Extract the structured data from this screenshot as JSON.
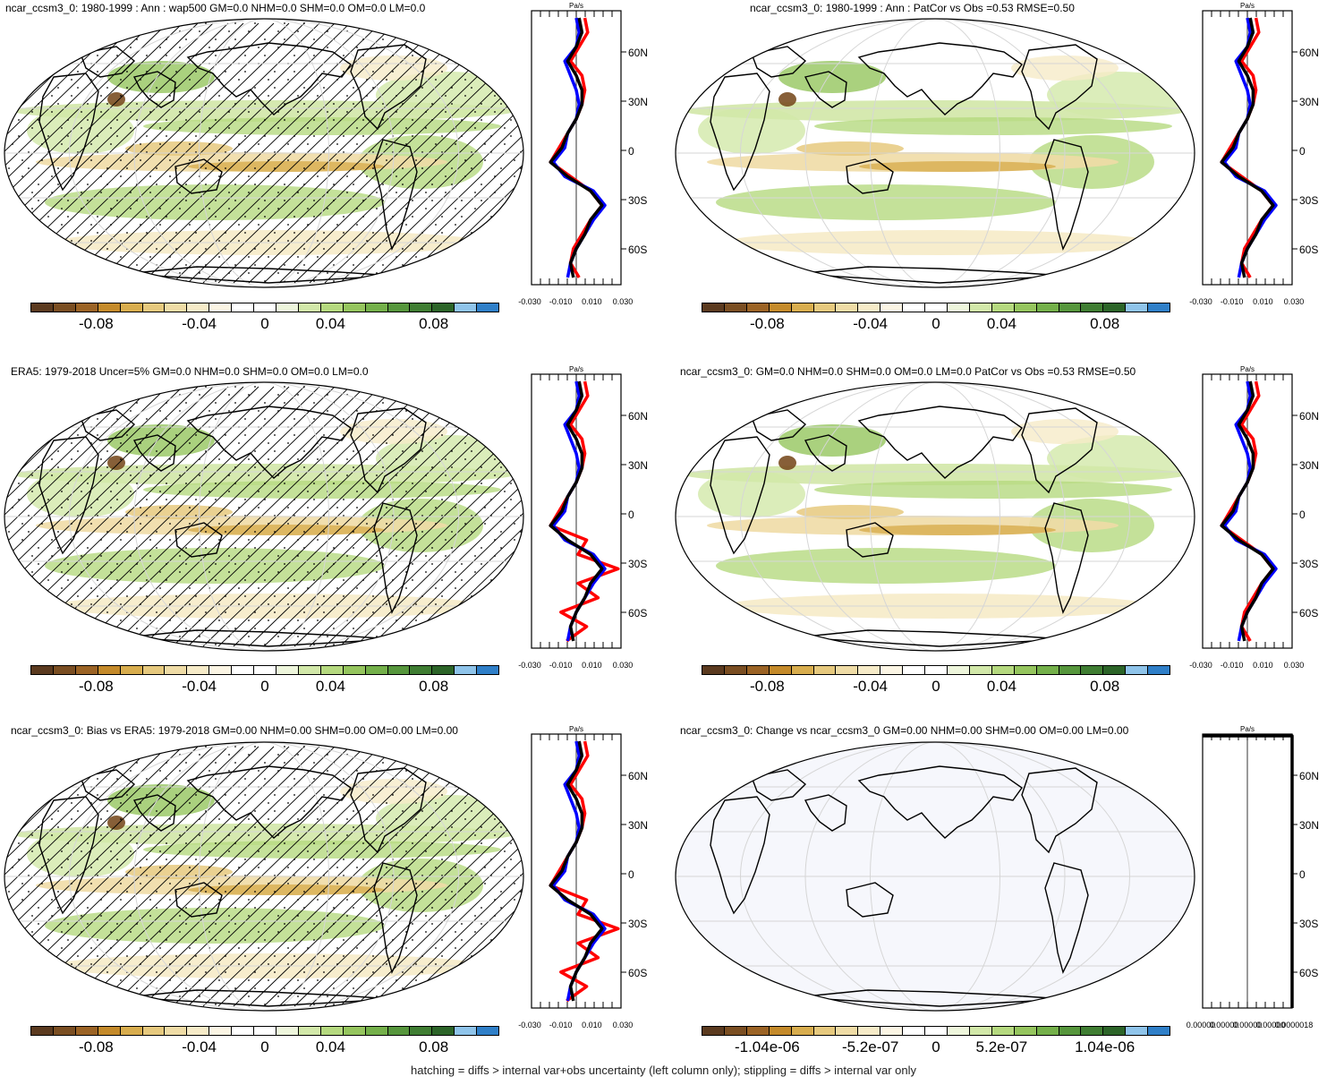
{
  "panels": [
    {
      "id": "p1",
      "title": "ncar_ccsm3_0: 1980-1999 : Ann : wap500 GM=0.0 NHM=0.0 SHM=0.0 OM=0.0 LM=0.0",
      "hatched": true,
      "colorbar_labels": [
        "-0.08",
        "-0.04",
        "0",
        "0.04",
        "0.08"
      ],
      "zonal": {
        "unit": "Pa/s",
        "xticks": [
          "-0.030",
          "-0.010",
          "0.010",
          "0.030"
        ],
        "yticks": [
          "60N",
          "30N",
          "0",
          "30S",
          "60S"
        ],
        "series_colors": [
          "#ff0000",
          "#0000ff",
          "#000000"
        ]
      }
    },
    {
      "id": "p2",
      "title": "ncar_ccsm3_0: 1980-1999 : Ann : PatCor vs Obs =0.53 RMSE=0.50",
      "hatched": false,
      "colorbar_labels": [
        "-0.08",
        "-0.04",
        "0",
        "0.04",
        "0.08"
      ],
      "zonal": {
        "unit": "Pa/s",
        "xticks": [
          "-0.030",
          "-0.010",
          "0.010",
          "0.030"
        ],
        "yticks": [
          "60N",
          "30N",
          "0",
          "30S",
          "60S"
        ],
        "series_colors": [
          "#ff0000",
          "#0000ff",
          "#000000"
        ]
      }
    },
    {
      "id": "p3",
      "title": "ERA5: 1979-2018 Uncer=5% GM=0.0 NHM=0.0 SHM=0.0 OM=0.0 LM=0.0",
      "hatched": true,
      "colorbar_labels": [
        "-0.08",
        "-0.04",
        "0",
        "0.04",
        "0.08"
      ],
      "zonal": {
        "unit": "Pa/s",
        "xticks": [
          "-0.030",
          "-0.010",
          "0.010",
          "0.030"
        ],
        "yticks": [
          "60N",
          "30N",
          "0",
          "30S",
          "60S"
        ],
        "series_colors": [
          "#ff0000",
          "#0000ff",
          "#000000"
        ]
      }
    },
    {
      "id": "p4",
      "title": "ncar_ccsm3_0: GM=0.0 NHM=0.0 SHM=0.0 OM=0.0 LM=0.0 PatCor vs Obs =0.53 RMSE=0.50",
      "hatched": false,
      "colorbar_labels": [
        "-0.08",
        "-0.04",
        "0",
        "0.04",
        "0.08"
      ],
      "zonal": {
        "unit": "Pa/s",
        "xticks": [
          "-0.030",
          "-0.010",
          "0.010",
          "0.030"
        ],
        "yticks": [
          "60N",
          "30N",
          "0",
          "30S",
          "60S"
        ],
        "series_colors": [
          "#ff0000",
          "#0000ff",
          "#000000"
        ]
      }
    },
    {
      "id": "p5",
      "title": "ncar_ccsm3_0: Bias vs ERA5: 1979-2018 GM=0.00 NHM=0.00 SHM=0.00 OM=0.00 LM=0.00",
      "hatched": true,
      "colorbar_labels": [
        "-0.08",
        "-0.04",
        "0",
        "0.04",
        "0.08"
      ],
      "zonal": {
        "unit": "Pa/s",
        "xticks": [
          "-0.030",
          "-0.010",
          "0.010",
          "0.030"
        ],
        "yticks": [
          "60N",
          "30N",
          "0",
          "30S",
          "60S"
        ],
        "series_colors": [
          "#ff0000",
          "#0000ff",
          "#000000"
        ]
      }
    },
    {
      "id": "p6",
      "title": "ncar_ccsm3_0: Change vs ncar_ccsm3_0 GM=0.00 NHM=0.00 SHM=0.00 OM=0.00 LM=0.00",
      "hatched": false,
      "blank": true,
      "colorbar_labels": [
        "-1.04e-06",
        "-5.2e-07",
        "0",
        "5.2e-07",
        "1.04e-06"
      ],
      "zonal": {
        "unit": "Pa/s",
        "xticks": [
          "0.00000",
          "0.00000",
          "0.00000",
          "0.00000",
          "0.0000018"
        ],
        "yticks": [
          "60N",
          "30N",
          "0",
          "30S",
          "60S"
        ],
        "series_colors": [
          "#000000"
        ]
      }
    }
  ],
  "colorbar_colors": [
    "#5b3a1f",
    "#7a4e22",
    "#9b6325",
    "#c48a2a",
    "#d8ad4e",
    "#e6c97e",
    "#efdca6",
    "#f6ebc8",
    "#fbf5e4",
    "#ffffff",
    "#ffffff",
    "#eef6dc",
    "#d2e8a9",
    "#b5d97f",
    "#95c55e",
    "#74b04a",
    "#56963c",
    "#3f7d32",
    "#2c6428",
    "#8fc4ea",
    "#2f7fc8"
  ],
  "footer": "hatching = diffs > internal var+obs uncertainty (left column only); stippling = diffs > internal var only"
}
